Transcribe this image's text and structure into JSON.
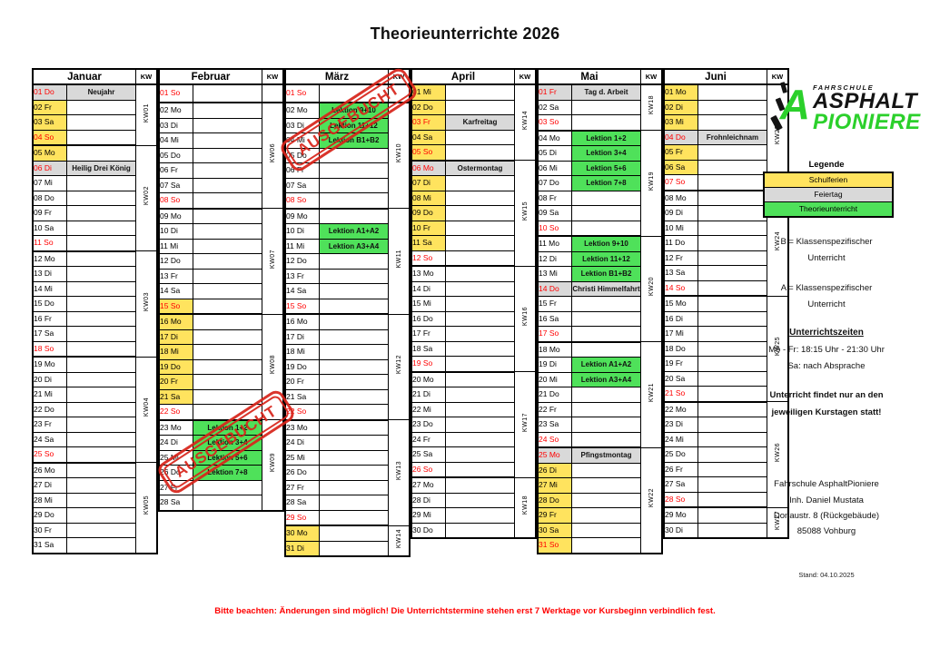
{
  "title": "Theorieunterrichte 2026",
  "kw_header": "KW",
  "stamp_label": "AUSGEBUCHT",
  "footer_note": "Bitte beachten: Änderungen sind möglich! Die Unterrichtstermine stehen erst 7 Werktage vor Kursbeginn verbindlich fest.",
  "logo": {
    "top": "FAHRSCHULE",
    "line1": "ASPHALT",
    "line2": "PIONIERE"
  },
  "legend": {
    "title": "Legende",
    "items": [
      {
        "label": "Schulferien",
        "color": "#ffe35e"
      },
      {
        "label": "Feiertag",
        "color": "#d9d9d9"
      },
      {
        "label": "Theorieunterricht",
        "color": "#4fe15a"
      }
    ]
  },
  "sidebar": {
    "class_b_line1": "B = Klassenspezifischer",
    "class_b_line2": "Unterricht",
    "class_a_line1": "A = Klassenspezifischer",
    "class_a_line2": "Unterricht",
    "times_title": "Unterrichtszeiten",
    "times_line1": "Mo - Fr: 18:15 Uhr - 21:30 Uhr",
    "times_line2": "Sa: nach Absprache",
    "notice_line1": "Unterricht findet nur an den",
    "notice_line2": "jeweiligen Kurstagen statt!",
    "address_line1": "Fahrschule AsphaltPioniere",
    "address_line2": "Inh. Daniel Mustata",
    "address_line3": "Donaustr. 8 (Rückgebäude)",
    "address_line4": "85088 Vohburg",
    "stand": "Stand: 04.10.2025"
  },
  "colors": {
    "schulferien": "#ffe35e",
    "feiertag": "#d9d9d9",
    "theorieunterricht": "#4fe15a",
    "sunday_text": "#ff0000",
    "stamp": "#d8251b",
    "logo_green": "#2bd02b"
  },
  "months": [
    {
      "name": "Januar",
      "weeks": [
        {
          "kw": "KW01",
          "rows": 4
        },
        {
          "kw": "KW02",
          "rows": 7
        },
        {
          "kw": "KW03",
          "rows": 7
        },
        {
          "kw": "KW04",
          "rows": 7
        },
        {
          "kw": "KW05",
          "rows": 6
        }
      ],
      "days": [
        {
          "n": "01",
          "w": "Do",
          "red": true,
          "bg": "gray",
          "ev": "Neujahr",
          "evbg": "gray"
        },
        {
          "n": "02",
          "w": "Fr",
          "bg": "yellow"
        },
        {
          "n": "03",
          "w": "Sa",
          "bg": "yellow"
        },
        {
          "n": "04",
          "w": "So",
          "red": true,
          "bg": "yellow"
        },
        {
          "n": "05",
          "w": "Mo",
          "bg": "yellow"
        },
        {
          "n": "06",
          "w": "Di",
          "red": true,
          "bg": "gray",
          "ev": "Heilig Drei König",
          "evbg": "gray"
        },
        {
          "n": "07",
          "w": "Mi"
        },
        {
          "n": "08",
          "w": "Do"
        },
        {
          "n": "09",
          "w": "Fr"
        },
        {
          "n": "10",
          "w": "Sa"
        },
        {
          "n": "11",
          "w": "So",
          "red": true
        },
        {
          "n": "12",
          "w": "Mo"
        },
        {
          "n": "13",
          "w": "Di"
        },
        {
          "n": "14",
          "w": "Mi"
        },
        {
          "n": "15",
          "w": "Do"
        },
        {
          "n": "16",
          "w": "Fr"
        },
        {
          "n": "17",
          "w": "Sa"
        },
        {
          "n": "18",
          "w": "So",
          "red": true
        },
        {
          "n": "19",
          "w": "Mo"
        },
        {
          "n": "20",
          "w": "Di"
        },
        {
          "n": "21",
          "w": "Mi"
        },
        {
          "n": "22",
          "w": "Do"
        },
        {
          "n": "23",
          "w": "Fr"
        },
        {
          "n": "24",
          "w": "Sa"
        },
        {
          "n": "25",
          "w": "So",
          "red": true
        },
        {
          "n": "26",
          "w": "Mo"
        },
        {
          "n": "27",
          "w": "Di"
        },
        {
          "n": "28",
          "w": "Mi"
        },
        {
          "n": "29",
          "w": "Do"
        },
        {
          "n": "30",
          "w": "Fr"
        },
        {
          "n": "31",
          "w": "Sa"
        }
      ]
    },
    {
      "name": "Februar",
      "weeks": [
        {
          "kw": "",
          "rows": 1
        },
        {
          "kw": "KW06",
          "rows": 7
        },
        {
          "kw": "KW07",
          "rows": 7
        },
        {
          "kw": "KW08",
          "rows": 7
        },
        {
          "kw": "KW09",
          "rows": 6
        }
      ],
      "days": [
        {
          "n": "01",
          "w": "So",
          "red": true
        },
        {
          "n": "02",
          "w": "Mo"
        },
        {
          "n": "03",
          "w": "Di"
        },
        {
          "n": "04",
          "w": "Mi"
        },
        {
          "n": "05",
          "w": "Do"
        },
        {
          "n": "06",
          "w": "Fr"
        },
        {
          "n": "07",
          "w": "Sa"
        },
        {
          "n": "08",
          "w": "So",
          "red": true
        },
        {
          "n": "09",
          "w": "Mo"
        },
        {
          "n": "10",
          "w": "Di"
        },
        {
          "n": "11",
          "w": "Mi"
        },
        {
          "n": "12",
          "w": "Do"
        },
        {
          "n": "13",
          "w": "Fr"
        },
        {
          "n": "14",
          "w": "Sa"
        },
        {
          "n": "15",
          "w": "So",
          "red": true,
          "bg": "yellow"
        },
        {
          "n": "16",
          "w": "Mo",
          "bg": "yellow"
        },
        {
          "n": "17",
          "w": "Di",
          "bg": "yellow"
        },
        {
          "n": "18",
          "w": "Mi",
          "bg": "yellow"
        },
        {
          "n": "19",
          "w": "Do",
          "bg": "yellow"
        },
        {
          "n": "20",
          "w": "Fr",
          "bg": "yellow"
        },
        {
          "n": "21",
          "w": "Sa",
          "bg": "yellow"
        },
        {
          "n": "22",
          "w": "So",
          "red": true
        },
        {
          "n": "23",
          "w": "Mo",
          "ev": "Lektion 1+2",
          "evbg": "green"
        },
        {
          "n": "24",
          "w": "Di",
          "ev": "Lektion 3+4",
          "evbg": "green"
        },
        {
          "n": "25",
          "w": "Mi",
          "ev": "Lektion 5+6",
          "evbg": "green"
        },
        {
          "n": "26",
          "w": "Do",
          "ev": "Lektion 7+8",
          "evbg": "green"
        },
        {
          "n": "27",
          "w": "Fr"
        },
        {
          "n": "28",
          "w": "Sa"
        }
      ]
    },
    {
      "name": "März",
      "weeks": [
        {
          "kw": "",
          "rows": 1
        },
        {
          "kw": "KW10",
          "rows": 7
        },
        {
          "kw": "KW11",
          "rows": 7
        },
        {
          "kw": "KW12",
          "rows": 7
        },
        {
          "kw": "KW13",
          "rows": 7
        },
        {
          "kw": "KW14",
          "rows": 2
        }
      ],
      "days": [
        {
          "n": "01",
          "w": "So",
          "red": true
        },
        {
          "n": "02",
          "w": "Mo",
          "ev": "Lektion 9+10",
          "evbg": "green"
        },
        {
          "n": "03",
          "w": "Di",
          "ev": "Lektion 11+12",
          "evbg": "green"
        },
        {
          "n": "04",
          "w": "Mi",
          "ev": "Lektion B1+B2",
          "evbg": "green"
        },
        {
          "n": "05",
          "w": "Do"
        },
        {
          "n": "06",
          "w": "Fr"
        },
        {
          "n": "07",
          "w": "Sa"
        },
        {
          "n": "08",
          "w": "So",
          "red": true
        },
        {
          "n": "09",
          "w": "Mo"
        },
        {
          "n": "10",
          "w": "Di",
          "ev": "Lektion A1+A2",
          "evbg": "green"
        },
        {
          "n": "11",
          "w": "Mi",
          "ev": "Lektion A3+A4",
          "evbg": "green"
        },
        {
          "n": "12",
          "w": "Do"
        },
        {
          "n": "13",
          "w": "Fr"
        },
        {
          "n": "14",
          "w": "Sa"
        },
        {
          "n": "15",
          "w": "So",
          "red": true
        },
        {
          "n": "16",
          "w": "Mo"
        },
        {
          "n": "17",
          "w": "Di"
        },
        {
          "n": "18",
          "w": "Mi"
        },
        {
          "n": "19",
          "w": "Do"
        },
        {
          "n": "20",
          "w": "Fr"
        },
        {
          "n": "21",
          "w": "Sa"
        },
        {
          "n": "22",
          "w": "So",
          "red": true
        },
        {
          "n": "23",
          "w": "Mo"
        },
        {
          "n": "24",
          "w": "Di"
        },
        {
          "n": "25",
          "w": "Mi"
        },
        {
          "n": "26",
          "w": "Do"
        },
        {
          "n": "27",
          "w": "Fr"
        },
        {
          "n": "28",
          "w": "Sa"
        },
        {
          "n": "29",
          "w": "So",
          "red": true
        },
        {
          "n": "30",
          "w": "Mo",
          "bg": "yellow"
        },
        {
          "n": "31",
          "w": "Di",
          "bg": "yellow"
        }
      ]
    },
    {
      "name": "April",
      "weeks": [
        {
          "kw": "KW14",
          "rows": 5
        },
        {
          "kw": "KW15",
          "rows": 7
        },
        {
          "kw": "KW16",
          "rows": 7
        },
        {
          "kw": "KW17",
          "rows": 7
        },
        {
          "kw": "KW18",
          "rows": 4
        }
      ],
      "days": [
        {
          "n": "01",
          "w": "Mi",
          "bg": "yellow"
        },
        {
          "n": "02",
          "w": "Do",
          "bg": "yellow"
        },
        {
          "n": "03",
          "w": "Fr",
          "red": true,
          "bg": "yellow",
          "ev": "Karfreitag",
          "evbg": "gray"
        },
        {
          "n": "04",
          "w": "Sa",
          "bg": "yellow"
        },
        {
          "n": "05",
          "w": "So",
          "red": true,
          "bg": "yellow"
        },
        {
          "n": "06",
          "w": "Mo",
          "red": true,
          "bg": "gray",
          "ev": "Ostermontag",
          "evbg": "gray"
        },
        {
          "n": "07",
          "w": "Di",
          "bg": "yellow"
        },
        {
          "n": "08",
          "w": "Mi",
          "bg": "yellow"
        },
        {
          "n": "09",
          "w": "Do",
          "bg": "yellow"
        },
        {
          "n": "10",
          "w": "Fr",
          "bg": "yellow"
        },
        {
          "n": "11",
          "w": "Sa",
          "bg": "yellow"
        },
        {
          "n": "12",
          "w": "So",
          "red": true
        },
        {
          "n": "13",
          "w": "Mo"
        },
        {
          "n": "14",
          "w": "Di"
        },
        {
          "n": "15",
          "w": "Mi"
        },
        {
          "n": "16",
          "w": "Do"
        },
        {
          "n": "17",
          "w": "Fr"
        },
        {
          "n": "18",
          "w": "Sa"
        },
        {
          "n": "19",
          "w": "So",
          "red": true
        },
        {
          "n": "20",
          "w": "Mo"
        },
        {
          "n": "21",
          "w": "Di"
        },
        {
          "n": "22",
          "w": "Mi"
        },
        {
          "n": "23",
          "w": "Do"
        },
        {
          "n": "24",
          "w": "Fr"
        },
        {
          "n": "25",
          "w": "Sa"
        },
        {
          "n": "26",
          "w": "So",
          "red": true
        },
        {
          "n": "27",
          "w": "Mo"
        },
        {
          "n": "28",
          "w": "Di"
        },
        {
          "n": "29",
          "w": "Mi"
        },
        {
          "n": "30",
          "w": "Do"
        }
      ]
    },
    {
      "name": "Mai",
      "weeks": [
        {
          "kw": "KW18",
          "rows": 3
        },
        {
          "kw": "KW19",
          "rows": 7
        },
        {
          "kw": "KW20",
          "rows": 7
        },
        {
          "kw": "KW21",
          "rows": 7
        },
        {
          "kw": "KW22",
          "rows": 7
        }
      ],
      "days": [
        {
          "n": "01",
          "w": "Fr",
          "red": true,
          "bg": "gray",
          "ev": "Tag d. Arbeit",
          "evbg": "gray"
        },
        {
          "n": "02",
          "w": "Sa"
        },
        {
          "n": "03",
          "w": "So",
          "red": true
        },
        {
          "n": "04",
          "w": "Mo",
          "ev": "Lektion 1+2",
          "evbg": "green"
        },
        {
          "n": "05",
          "w": "Di",
          "ev": "Lektion 3+4",
          "evbg": "green"
        },
        {
          "n": "06",
          "w": "Mi",
          "ev": "Lektion 5+6",
          "evbg": "green"
        },
        {
          "n": "07",
          "w": "Do",
          "ev": "Lektion 7+8",
          "evbg": "green"
        },
        {
          "n": "08",
          "w": "Fr"
        },
        {
          "n": "09",
          "w": "Sa"
        },
        {
          "n": "10",
          "w": "So",
          "red": true
        },
        {
          "n": "11",
          "w": "Mo",
          "ev": "Lektion 9+10",
          "evbg": "green"
        },
        {
          "n": "12",
          "w": "Di",
          "ev": "Lektion 11+12",
          "evbg": "green"
        },
        {
          "n": "13",
          "w": "Mi",
          "ev": "Lektion B1+B2",
          "evbg": "green"
        },
        {
          "n": "14",
          "w": "Do",
          "red": true,
          "bg": "gray",
          "ev": "Christi Himmelfahrt",
          "evbg": "gray"
        },
        {
          "n": "15",
          "w": "Fr"
        },
        {
          "n": "16",
          "w": "Sa"
        },
        {
          "n": "17",
          "w": "So",
          "red": true
        },
        {
          "n": "18",
          "w": "Mo"
        },
        {
          "n": "19",
          "w": "Di",
          "ev": "Lektion A1+A2",
          "evbg": "green"
        },
        {
          "n": "20",
          "w": "Mi",
          "ev": "Lektion A3+A4",
          "evbg": "green"
        },
        {
          "n": "21",
          "w": "Do"
        },
        {
          "n": "22",
          "w": "Fr"
        },
        {
          "n": "23",
          "w": "Sa"
        },
        {
          "n": "24",
          "w": "So",
          "red": true
        },
        {
          "n": "25",
          "w": "Mo",
          "red": true,
          "bg": "gray",
          "ev": "Pfingstmontag",
          "evbg": "gray"
        },
        {
          "n": "26",
          "w": "Di",
          "bg": "yellow"
        },
        {
          "n": "27",
          "w": "Mi",
          "bg": "yellow"
        },
        {
          "n": "28",
          "w": "Do",
          "bg": "yellow"
        },
        {
          "n": "29",
          "w": "Fr",
          "bg": "yellow"
        },
        {
          "n": "30",
          "w": "Sa",
          "bg": "yellow"
        },
        {
          "n": "31",
          "w": "So",
          "red": true,
          "bg": "yellow"
        }
      ]
    },
    {
      "name": "Juni",
      "weeks": [
        {
          "kw": "KW23",
          "rows": 7
        },
        {
          "kw": "KW24",
          "rows": 7
        },
        {
          "kw": "KW25",
          "rows": 7
        },
        {
          "kw": "KW26",
          "rows": 7
        },
        {
          "kw": "KW27",
          "rows": 2
        }
      ],
      "days": [
        {
          "n": "01",
          "w": "Mo",
          "bg": "yellow"
        },
        {
          "n": "02",
          "w": "Di",
          "bg": "yellow"
        },
        {
          "n": "03",
          "w": "Mi",
          "bg": "yellow"
        },
        {
          "n": "04",
          "w": "Do",
          "red": true,
          "bg": "gray",
          "ev": "Frohnleichnam",
          "evbg": "gray"
        },
        {
          "n": "05",
          "w": "Fr",
          "bg": "yellow"
        },
        {
          "n": "06",
          "w": "Sa",
          "bg": "yellow"
        },
        {
          "n": "07",
          "w": "So",
          "red": true
        },
        {
          "n": "08",
          "w": "Mo"
        },
        {
          "n": "09",
          "w": "Di"
        },
        {
          "n": "10",
          "w": "Mi"
        },
        {
          "n": "11",
          "w": "Do"
        },
        {
          "n": "12",
          "w": "Fr"
        },
        {
          "n": "13",
          "w": "Sa"
        },
        {
          "n": "14",
          "w": "So",
          "red": true
        },
        {
          "n": "15",
          "w": "Mo"
        },
        {
          "n": "16",
          "w": "Di"
        },
        {
          "n": "17",
          "w": "Mi"
        },
        {
          "n": "18",
          "w": "Do"
        },
        {
          "n": "19",
          "w": "Fr"
        },
        {
          "n": "20",
          "w": "Sa"
        },
        {
          "n": "21",
          "w": "So",
          "red": true
        },
        {
          "n": "22",
          "w": "Mo"
        },
        {
          "n": "23",
          "w": "Di"
        },
        {
          "n": "24",
          "w": "Mi"
        },
        {
          "n": "25",
          "w": "Do"
        },
        {
          "n": "26",
          "w": "Fr"
        },
        {
          "n": "27",
          "w": "Sa"
        },
        {
          "n": "28",
          "w": "So",
          "red": true
        },
        {
          "n": "29",
          "w": "Mo"
        },
        {
          "n": "30",
          "w": "Di"
        }
      ]
    }
  ]
}
